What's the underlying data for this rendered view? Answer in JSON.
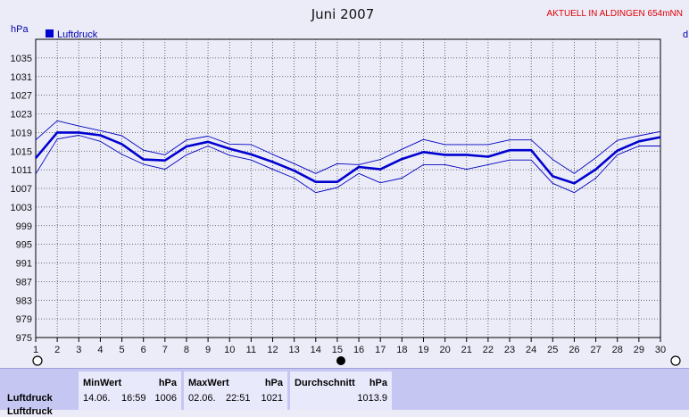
{
  "chart_data": {
    "type": "line",
    "title": "Juni 2007",
    "badge": "AKTUELL IN ALDINGEN 654mNN",
    "unit_left": "hPa",
    "unit_right": "d",
    "legend": "Luftdruck",
    "x": [
      1,
      2,
      3,
      4,
      5,
      6,
      7,
      8,
      9,
      10,
      11,
      12,
      13,
      14,
      15,
      16,
      17,
      18,
      19,
      20,
      21,
      22,
      23,
      24,
      25,
      26,
      27,
      28,
      29,
      30
    ],
    "ylim": [
      975,
      1039
    ],
    "yticks": [
      975,
      979,
      983,
      987,
      991,
      995,
      999,
      1003,
      1007,
      1011,
      1015,
      1019,
      1023,
      1027,
      1031,
      1035
    ],
    "grid": true,
    "legend_position": "top-left",
    "series": [
      {
        "name": "Luftdruck",
        "role": "mean",
        "values": [
          1013.5,
          1019,
          1019,
          1018.4,
          1016.5,
          1013.2,
          1013,
          1016,
          1017,
          1015.5,
          1014.3,
          1012.7,
          1010.8,
          1008.4,
          1008.4,
          1011.6,
          1011.1,
          1013.3,
          1014.8,
          1014.2,
          1014.2,
          1013.8,
          1015.2,
          1015.2,
          1009.6,
          1008.1,
          1011.1,
          1015.1,
          1017.1,
          1018
        ]
      },
      {
        "name": "Max",
        "role": "max",
        "values": [
          1017.4,
          1021.5,
          1020.4,
          1019.4,
          1018.3,
          1015.2,
          1014.2,
          1017.4,
          1018.2,
          1016.5,
          1016.4,
          1014.3,
          1012.3,
          1010.2,
          1012.3,
          1012.1,
          1013.2,
          1015.4,
          1017.5,
          1016.4,
          1016.4,
          1016.4,
          1017.4,
          1017.4,
          1013.2,
          1010.2,
          1013.6,
          1017.3,
          1018.3,
          1019.2
        ]
      },
      {
        "name": "Min",
        "role": "min",
        "values": [
          1010.1,
          1017.6,
          1018.4,
          1017.1,
          1014.3,
          1012.2,
          1011.1,
          1014.2,
          1016.1,
          1014.1,
          1013.1,
          1011.1,
          1009.2,
          1006.1,
          1007.2,
          1010.2,
          1008.2,
          1009.2,
          1012.1,
          1012.1,
          1011.1,
          1012.1,
          1013.1,
          1013.1,
          1008.1,
          1006.1,
          1009.2,
          1014.2,
          1016.1,
          1016.1
        ]
      }
    ]
  },
  "stats": {
    "row_label": "Luftdruck",
    "row_label_2": "Luftdruck",
    "min": {
      "header": "MinWert",
      "unit": "hPa",
      "date": "14.06.",
      "time": "16:59",
      "value": "1006"
    },
    "max": {
      "header": "MaxWert",
      "unit": "hPa",
      "date": "02.06.",
      "time": "22:51",
      "value": "1021"
    },
    "avg": {
      "header": "Durchschnitt",
      "unit": "hPa",
      "value": "1013.9"
    }
  },
  "colors": {
    "mean": "#0000d0",
    "band": "#0000c0",
    "grid": "#444",
    "plot_bg": "#ececf9",
    "badge": "#e00000"
  }
}
